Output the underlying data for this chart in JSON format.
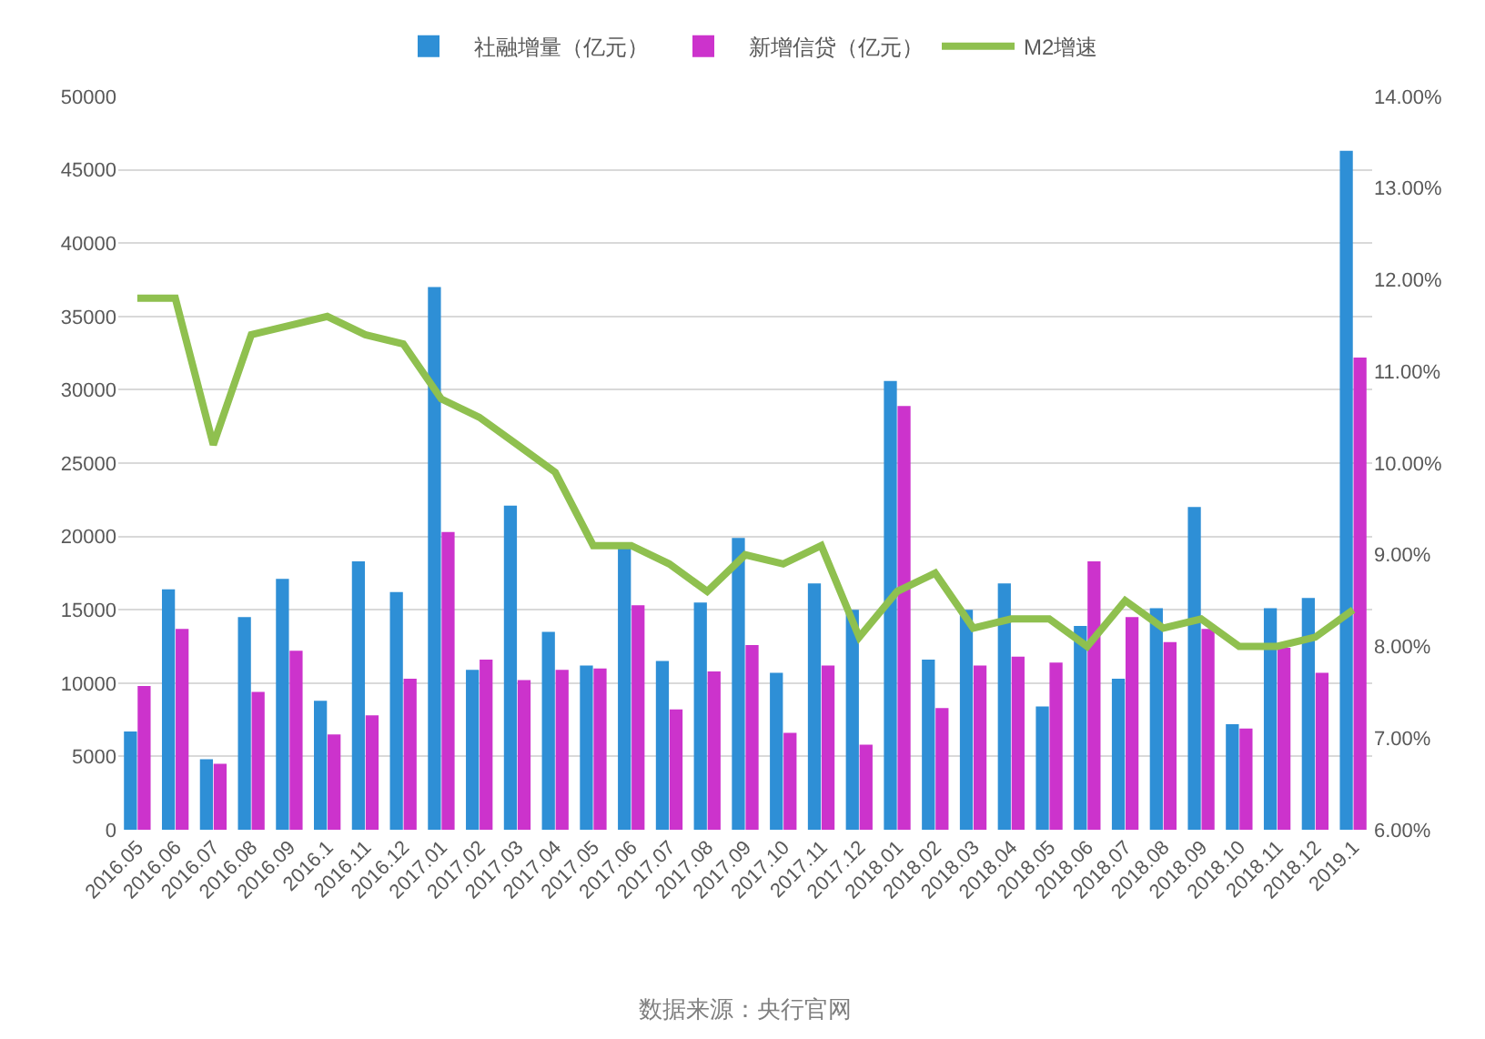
{
  "chart_data": {
    "type": "bar",
    "categories": [
      "2016.05",
      "2016.06",
      "2016.07",
      "2016.08",
      "2016.09",
      "2016.1",
      "2016.11",
      "2016.12",
      "2017.01",
      "2017.02",
      "2017.03",
      "2017.04",
      "2017.05",
      "2017.06",
      "2017.07",
      "2017.08",
      "2017.09",
      "2017.10",
      "2017.11",
      "2017.12",
      "2018.01",
      "2018.02",
      "2018.03",
      "2018.04",
      "2018.05",
      "2018.06",
      "2018.07",
      "2018.08",
      "2018.09",
      "2018.10",
      "2018.11",
      "2018.12",
      "2019.1"
    ],
    "series": [
      {
        "name": "社融增量（亿元）",
        "color": "#2e8fd6",
        "values": [
          6700,
          16400,
          4800,
          14500,
          17100,
          8800,
          18300,
          16200,
          37000,
          10900,
          22100,
          13500,
          11200,
          19200,
          11500,
          15500,
          19900,
          10700,
          16800,
          15000,
          30600,
          11600,
          15000,
          16800,
          8400,
          13900,
          10300,
          15100,
          22000,
          7200,
          15100,
          15800,
          46300
        ]
      },
      {
        "name": "新增信贷（亿元）",
        "color": "#cc33cc",
        "values": [
          9800,
          13700,
          4500,
          9400,
          12200,
          6500,
          7800,
          10300,
          20300,
          11600,
          10200,
          10900,
          11000,
          15300,
          8200,
          10800,
          12600,
          6600,
          11200,
          5800,
          28900,
          8300,
          11200,
          11800,
          11400,
          18300,
          14500,
          12800,
          13700,
          6900,
          12400,
          10700,
          32200
        ]
      },
      {
        "name": "M2增速",
        "type": "line",
        "axis": "y2",
        "color": "#8fc04f",
        "values": [
          11.8,
          11.8,
          10.2,
          11.4,
          11.5,
          11.6,
          11.4,
          11.3,
          10.7,
          10.5,
          10.2,
          9.9,
          9.1,
          9.1,
          8.9,
          8.6,
          9.0,
          8.9,
          9.1,
          8.1,
          8.6,
          8.8,
          8.2,
          8.3,
          8.3,
          8.0,
          8.5,
          8.2,
          8.3,
          8.0,
          8.0,
          8.1,
          8.4
        ]
      }
    ],
    "ylim": [
      0,
      50000
    ],
    "yticks": [
      0,
      5000,
      10000,
      15000,
      20000,
      25000,
      30000,
      35000,
      40000,
      45000,
      50000
    ],
    "y2lim": [
      6,
      14
    ],
    "y2ticks": [
      {
        "value": 6,
        "label": "6.00%"
      },
      {
        "value": 7,
        "label": "7.00%"
      },
      {
        "value": 8,
        "label": "8.00%"
      },
      {
        "value": 9,
        "label": "9.00%"
      },
      {
        "value": 10,
        "label": "10.00%"
      },
      {
        "value": 11,
        "label": "11.00%"
      },
      {
        "value": 12,
        "label": "12.00%"
      },
      {
        "value": 13,
        "label": "13.00%"
      },
      {
        "value": 14,
        "label": "14.00%"
      }
    ],
    "grid": "y",
    "legend": "top",
    "marker": "none",
    "line_style": "solid",
    "annotations": [
      "数据来源：央行官网"
    ]
  }
}
